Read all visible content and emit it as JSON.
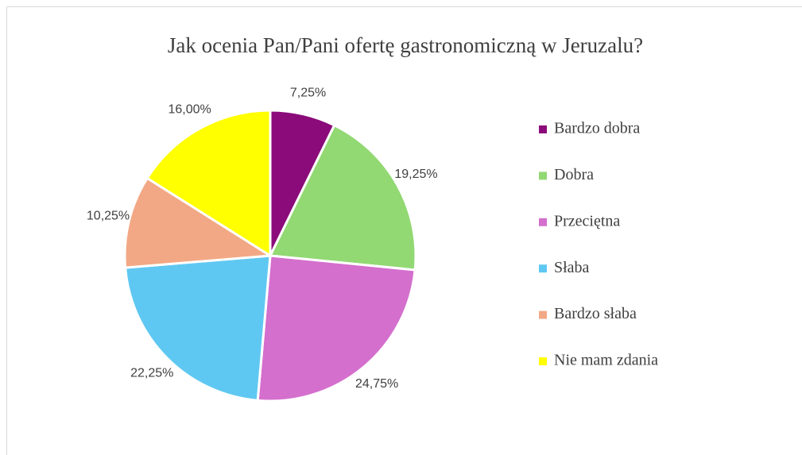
{
  "chart_data": {
    "type": "pie",
    "title": "Jak ocenia Pan/Pani ofertę gastronomiczną w Jeruzalu?",
    "categories": [
      "Bardzo dobra",
      "Dobra",
      "Przeciętna",
      "Słaba",
      "Bardzo słaba",
      "Nie mam zdania"
    ],
    "values": [
      7.25,
      19.25,
      24.75,
      22.25,
      10.25,
      16.0
    ],
    "value_labels": [
      "7,25%",
      "19,25%",
      "24,75%",
      "22,25%",
      "10,25%",
      "16,00%"
    ],
    "colors": [
      "#8b0b7a",
      "#92d873",
      "#d46fcd",
      "#5fc8f2",
      "#f2a884",
      "#ffff00"
    ],
    "legend": "right"
  }
}
